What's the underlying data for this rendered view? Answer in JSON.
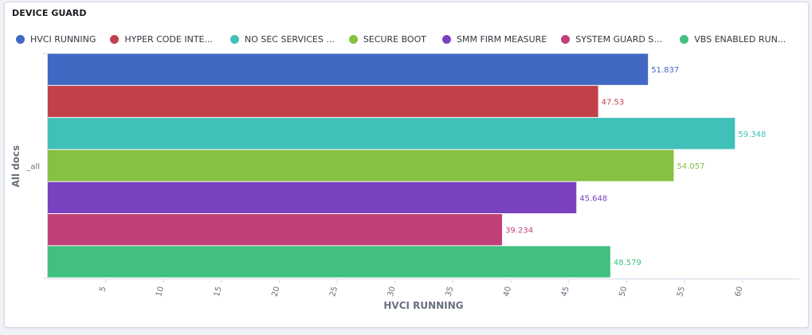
{
  "panel": {
    "title": "DEVICE GUARD"
  },
  "legend": [
    {
      "label": "HVCI RUNNING",
      "color": "#4169c4"
    },
    {
      "label": "HYPER CODE INTE...",
      "color": "#c0414a"
    },
    {
      "label": "NO SEC SERVICES ...",
      "color": "#41c0b8"
    },
    {
      "label": "SECURE BOOT",
      "color": "#86c141"
    },
    {
      "label": "SMM FIRM MEASURE",
      "color": "#7a41c0"
    },
    {
      "label": "SYSTEM GUARD SE...",
      "color": "#c0417a"
    },
    {
      "label": "VBS ENABLED RUN...",
      "color": "#41c07f"
    }
  ],
  "chart_data": {
    "type": "bar",
    "orientation": "horizontal",
    "categories": [
      "_all"
    ],
    "series": [
      {
        "name": "HVCI RUNNING",
        "values": [
          51.837
        ],
        "color": "#4169c4"
      },
      {
        "name": "HYPER CODE INTE...",
        "values": [
          47.53
        ],
        "color": "#c0414a"
      },
      {
        "name": "NO SEC SERVICES ...",
        "values": [
          59.348
        ],
        "color": "#41c0b8"
      },
      {
        "name": "SECURE BOOT",
        "values": [
          54.057
        ],
        "color": "#86c141"
      },
      {
        "name": "SMM FIRM MEASURE",
        "values": [
          45.648
        ],
        "color": "#7a41c0"
      },
      {
        "name": "SYSTEM GUARD SE...",
        "values": [
          39.234
        ],
        "color": "#c0417a"
      },
      {
        "name": "VBS ENABLED RUN...",
        "values": [
          48.579
        ],
        "color": "#41c07f"
      }
    ],
    "data_labels": [
      "51.837",
      "47.53",
      "59.348",
      "54.057",
      "45.648",
      "39.234",
      "48.579"
    ],
    "xlabel": "HVCI RUNNING",
    "ylabel": "All docs",
    "xlim": [
      0,
      65
    ],
    "xticks": [
      5,
      10,
      15,
      20,
      25,
      30,
      35,
      40,
      45,
      50,
      55,
      60
    ],
    "grid": false,
    "legend_position": "top"
  }
}
